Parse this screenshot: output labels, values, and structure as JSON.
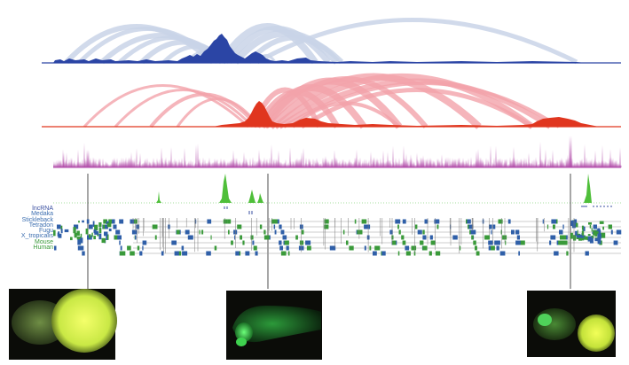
{
  "tracks": {
    "labels": [
      {
        "text": "lncRNA",
        "color": "#3a4fa0"
      },
      {
        "text": "Medaka",
        "color": "#3d6fb0"
      },
      {
        "text": "Stickleback",
        "color": "#3d6fb0"
      },
      {
        "text": "Tetradon",
        "color": "#3d6fb0"
      },
      {
        "text": "Fugu",
        "color": "#3d6fb0"
      },
      {
        "text": "X_tropicalis",
        "color": "#3d6fb0"
      },
      {
        "text": "Mouse",
        "color": "#3a9a3a"
      },
      {
        "text": "Human",
        "color": "#3a9a3a"
      }
    ]
  },
  "colors": {
    "blue_arc": "#c9d3e8",
    "blue_peak": "#2b45a5",
    "red_arc": "#f2a3aa",
    "red_peak": "#e0361f",
    "magenta": "#b04aa8",
    "green_signal": "#4fbf3a",
    "gene_blue": "#2f5fa8",
    "gene_green": "#3a9a3a",
    "embryo_bg": "#0b0c08"
  },
  "embryos": [
    {
      "name": "embryo-left",
      "fluorescence": "yellow-green"
    },
    {
      "name": "embryo-middle",
      "fluorescence": "green"
    },
    {
      "name": "embryo-right",
      "fluorescence": "yellow-green"
    }
  ]
}
